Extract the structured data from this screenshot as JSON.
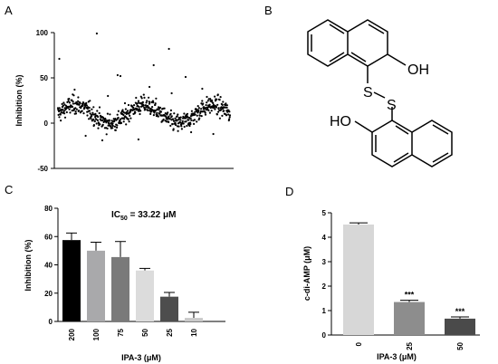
{
  "panels": {
    "A": {
      "letter": "A",
      "chart_data": {
        "type": "scatter",
        "xlabel": "",
        "ylabel": "Inhibition (%)",
        "ylim": [
          -50,
          100
        ],
        "yticks": [
          "100",
          "50",
          "0",
          "-50"
        ],
        "grid": false,
        "n_points": 620,
        "y_center_range": [
          0,
          20
        ],
        "outliers": [
          {
            "x": 5,
            "y": 71
          },
          {
            "x": 140,
            "y": 99
          },
          {
            "x": 400,
            "y": 82
          },
          {
            "x": 215,
            "y": 53
          },
          {
            "x": 225,
            "y": 52
          },
          {
            "x": 345,
            "y": 64
          },
          {
            "x": 460,
            "y": 51
          },
          {
            "x": 60,
            "y": 37
          },
          {
            "x": 180,
            "y": 30
          },
          {
            "x": 330,
            "y": 40
          },
          {
            "x": 520,
            "y": 38
          },
          {
            "x": 410,
            "y": 33
          },
          {
            "x": 290,
            "y": -18
          },
          {
            "x": 100,
            "y": -14
          },
          {
            "x": 560,
            "y": -12
          },
          {
            "x": 160,
            "y": -19
          },
          {
            "x": 480,
            "y": -10
          }
        ]
      }
    },
    "B": {
      "letter": "B",
      "structure": {
        "label_oh_top": "OH",
        "label_s1": "S",
        "label_s2": "S",
        "label_ho_bottom": "HO"
      }
    },
    "C": {
      "letter": "C",
      "annotation": {
        "prefix": "IC",
        "subscript": "50",
        "suffix": " = 33.22 μM"
      },
      "chart_data": {
        "type": "bar",
        "categories": [
          "200",
          "100",
          "75",
          "50",
          "25",
          "10"
        ],
        "values": [
          57.5,
          50,
          45.5,
          36,
          17.5,
          2.5
        ],
        "errors": [
          5,
          6,
          11,
          1.5,
          3,
          4
        ],
        "colors": [
          "#000000",
          "#a9a9ab",
          "#7a7a7a",
          "#dcdcdc",
          "#4d4d4d",
          "#c9c9c9"
        ],
        "xlabel": "IPA-3 (μM)",
        "ylabel": "Inhibition (%)",
        "ylim": [
          0,
          80
        ],
        "yticks": [
          "80",
          "60",
          "40",
          "20",
          "0"
        ]
      }
    },
    "D": {
      "letter": "D",
      "chart_data": {
        "type": "bar",
        "categories": [
          "0",
          "25",
          "50"
        ],
        "values": [
          4.52,
          1.35,
          0.67
        ],
        "errors": [
          0.07,
          0.07,
          0.07
        ],
        "colors": [
          "#d7d7d7",
          "#8d8d8d",
          "#4a4a4a"
        ],
        "significance": [
          "",
          "***",
          "***"
        ],
        "xlabel": "IPA-3 (μM)",
        "ylabel": "c-di-AMP (μM)",
        "ylim": [
          0,
          5
        ],
        "yticks": [
          "5",
          "4",
          "3",
          "2",
          "1",
          "0"
        ]
      }
    }
  }
}
